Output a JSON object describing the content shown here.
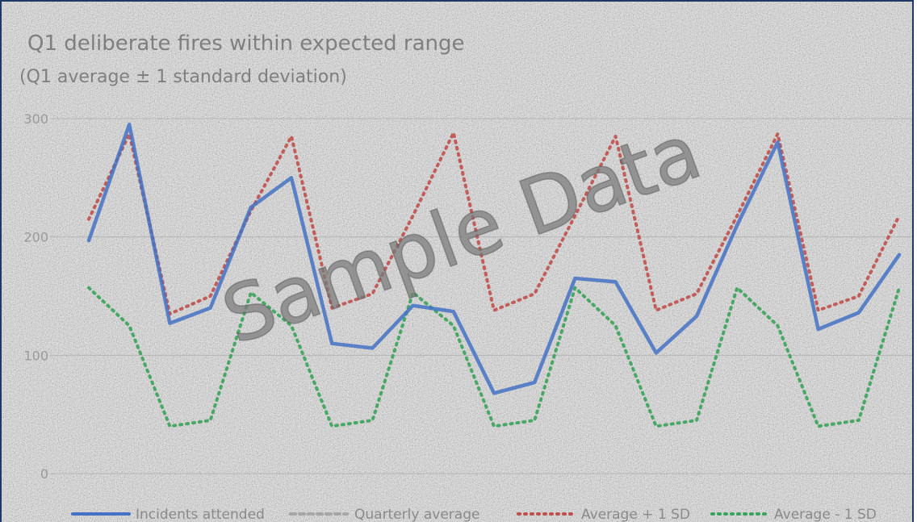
{
  "chart_data": {
    "type": "line",
    "title": "Q1 deliberate fires within expected range",
    "subtitle": "(Q1 average ± 1 standard deviation)",
    "ylim": [
      0,
      300
    ],
    "yticks": [
      0,
      100,
      200,
      300
    ],
    "grid": true,
    "legend_position": "bottom",
    "point_count": 21,
    "series": [
      {
        "name": "Incidents attended",
        "style": "solid",
        "color": "#4472c4",
        "values": [
          197,
          295,
          127,
          140,
          225,
          250,
          110,
          106,
          142,
          137,
          68,
          77,
          165,
          162,
          102,
          133,
          210,
          280,
          122,
          136,
          185
        ]
      },
      {
        "name": "Quarterly average",
        "style": "dashed",
        "color": "#a6a6a6",
        "values": []
      },
      {
        "name": "Average + 1 SD",
        "style": "dotted",
        "color": "#c0504d",
        "values": [
          215,
          287,
          135,
          150,
          222,
          285,
          140,
          152,
          218,
          288,
          138,
          152,
          218,
          285,
          138,
          152,
          218,
          287,
          138,
          150,
          218
        ]
      },
      {
        "name": "Average - 1 SD",
        "style": "dotted",
        "color": "#3aa35a",
        "values": [
          157,
          125,
          40,
          45,
          153,
          125,
          40,
          45,
          153,
          125,
          40,
          45,
          157,
          125,
          40,
          45,
          157,
          125,
          40,
          45,
          157
        ]
      }
    ]
  },
  "watermark": "Sample Data"
}
